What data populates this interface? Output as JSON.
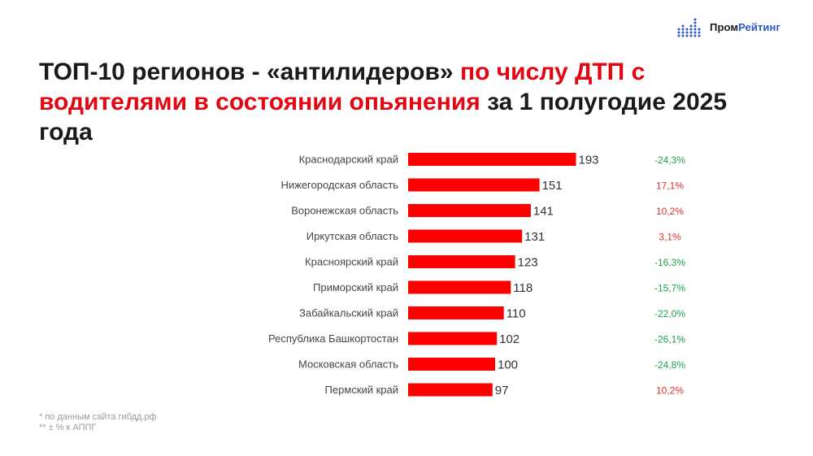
{
  "logo": {
    "name_part1": "Пром",
    "name_part2": "Рейтинг",
    "accent_color": "#2d58c8"
  },
  "title": {
    "part1": "ТОП-10 регионов - «антилидеров» ",
    "part2": "по числу ДТП с водителями в состоянии опьянения",
    "part3": " за 1 полугодие 2025 года"
  },
  "chart_data": {
    "type": "bar",
    "orientation": "horizontal",
    "categories": [
      "Краснодарский край",
      "Нижегородская область",
      "Воронежская область",
      "Иркутская область",
      "Красноярский край",
      "Приморский край",
      "Забайкальский край",
      "Республика Башкортостан",
      "Московская область",
      "Пермский край"
    ],
    "values": [
      193,
      151,
      141,
      131,
      123,
      118,
      110,
      102,
      100,
      97
    ],
    "changes": [
      "-24,3%",
      "17,1%",
      "10,2%",
      "3,1%",
      "-16,3%",
      "-15,7%",
      "-22,0%",
      "-26,1%",
      "-24,8%",
      "10,2%"
    ],
    "bar_color": "#ff0000",
    "positive_color": "#e03030",
    "negative_color": "#22a04b"
  },
  "notes": {
    "source": "* по данным сайта гибдд.рф",
    "change_note": "** ± % к АППГ"
  }
}
